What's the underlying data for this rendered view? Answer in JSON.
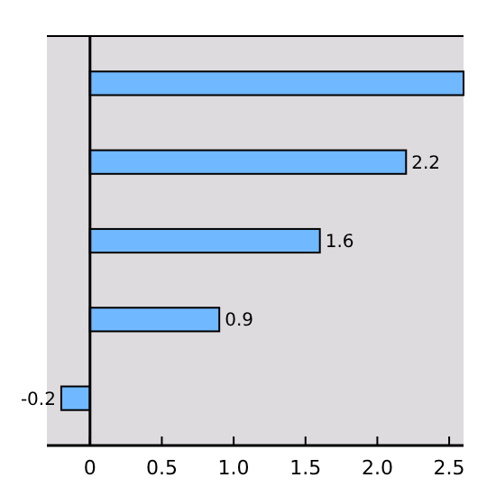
{
  "chart_data": {
    "type": "bar",
    "orientation": "horizontal",
    "categories": [
      null,
      null,
      null,
      null,
      null
    ],
    "values": [
      2.6,
      2.2,
      1.6,
      0.9,
      -0.2
    ],
    "value_labels": [
      null,
      "2.2",
      "1.6",
      "0.9",
      "-0.2"
    ],
    "color": "#70b8ff",
    "xlim": [
      -0.3,
      2.6
    ],
    "xticks": [
      0,
      0.5,
      {
        "value": 1,
        "label": "1.0"
      },
      1.5,
      {
        "value": 2,
        "label": "2.0"
      },
      2.5
    ]
  }
}
